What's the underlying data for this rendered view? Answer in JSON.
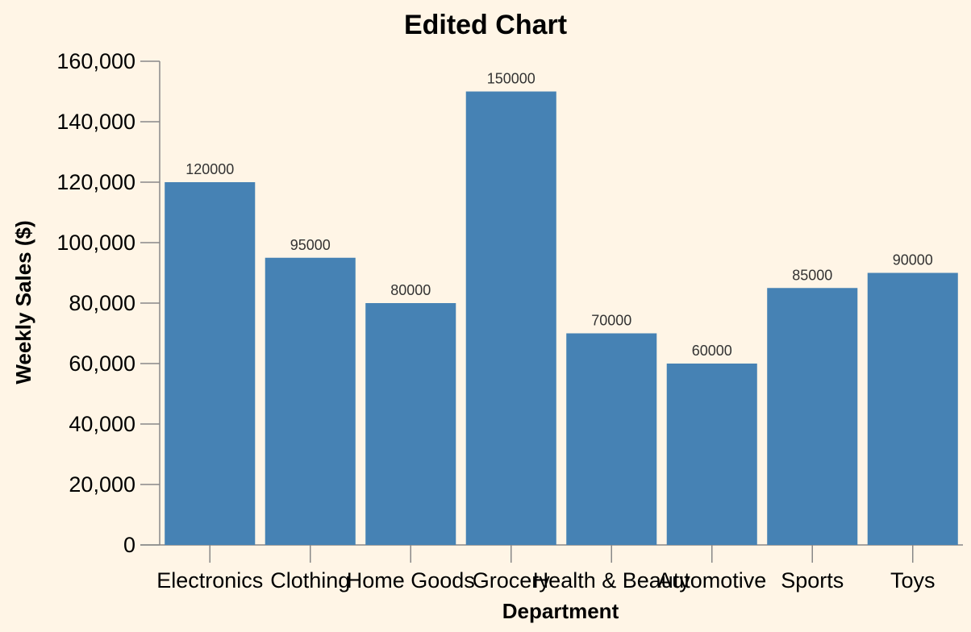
{
  "chart_data": {
    "type": "bar",
    "title": "Edited Chart",
    "xlabel": "Department",
    "ylabel": "Weekly Sales ($)",
    "categories": [
      "Electronics",
      "Clothing",
      "Home Goods",
      "Grocery",
      "Health & Beauty",
      "Automotive",
      "Sports",
      "Toys"
    ],
    "values": [
      120000,
      95000,
      80000,
      150000,
      70000,
      60000,
      85000,
      90000
    ],
    "ylim": [
      0,
      160000
    ],
    "yticks": [
      0,
      20000,
      40000,
      60000,
      80000,
      100000,
      120000,
      140000,
      160000
    ],
    "ytick_labels": [
      "0",
      "20,000",
      "40,000",
      "60,000",
      "80,000",
      "100,000",
      "120,000",
      "140,000",
      "160,000"
    ],
    "grid": false,
    "bar_color": "#4682b4",
    "background_color": "#fff5e6"
  }
}
